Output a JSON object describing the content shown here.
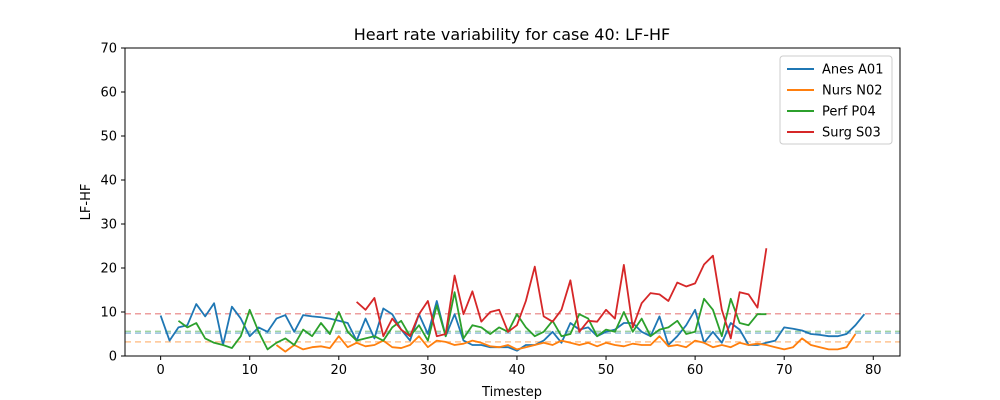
{
  "chart_data": {
    "type": "line",
    "title": "Heart rate variability for case 40: LF-HF",
    "xlabel": "Timestep",
    "ylabel": "LF-HF",
    "xlim": [
      -4,
      83
    ],
    "ylim": [
      0,
      70
    ],
    "xticks": [
      0,
      10,
      20,
      30,
      40,
      50,
      60,
      70,
      80
    ],
    "yticks": [
      0,
      10,
      20,
      30,
      40,
      50,
      60,
      70
    ],
    "grid": false,
    "legend_position": "top-right",
    "series": [
      {
        "name": "Anes A01",
        "color": "#1f77b4",
        "baseline": 5.2,
        "x": [
          0,
          1,
          2,
          3,
          4,
          5,
          6,
          7,
          8,
          9,
          10,
          11,
          12,
          13,
          14,
          15,
          16,
          17,
          18,
          19,
          20,
          21,
          22,
          23,
          24,
          25,
          26,
          27,
          28,
          29,
          30,
          31,
          32,
          33,
          34,
          35,
          36,
          37,
          38,
          39,
          40,
          41,
          42,
          43,
          44,
          45,
          46,
          47,
          48,
          49,
          50,
          51,
          52,
          53,
          54,
          55,
          56,
          57,
          58,
          59,
          60,
          61,
          62,
          63,
          64,
          65,
          66,
          67,
          68,
          69,
          70,
          71,
          72,
          73,
          74,
          75,
          76,
          77,
          78,
          79
        ],
        "values": [
          9.2,
          3.5,
          6.5,
          7.0,
          11.8,
          9.0,
          12.0,
          2.5,
          11.2,
          8.5,
          4.5,
          6.5,
          5.5,
          8.5,
          9.3,
          5.5,
          9.3,
          9.0,
          8.8,
          8.5,
          8.0,
          7.5,
          3.5,
          8.5,
          4.0,
          10.8,
          9.5,
          6.0,
          3.5,
          9.5,
          5.0,
          12.5,
          4.5,
          9.5,
          3.5,
          2.5,
          2.5,
          2.0,
          2.0,
          2.0,
          1.2,
          2.5,
          2.5,
          3.5,
          5.5,
          3.0,
          7.5,
          6.0,
          6.5,
          4.5,
          5.5,
          6.0,
          7.5,
          7.5,
          5.5,
          4.5,
          9.0,
          2.5,
          4.5,
          7.0,
          10.5,
          3.0,
          5.5,
          3.0,
          7.5,
          6.0,
          2.5,
          2.5,
          3.0,
          3.5,
          6.5,
          6.2,
          5.8,
          5.0,
          4.8,
          4.5,
          4.5,
          5.0,
          7.0,
          9.5
        ]
      },
      {
        "name": "Nurs N02",
        "color": "#ff7f0e",
        "baseline": 3.2,
        "x": [
          13,
          14,
          15,
          16,
          17,
          18,
          19,
          20,
          21,
          22,
          23,
          24,
          25,
          26,
          27,
          28,
          29,
          30,
          31,
          32,
          33,
          34,
          35,
          36,
          37,
          38,
          39,
          40,
          41,
          42,
          43,
          44,
          45,
          46,
          47,
          48,
          49,
          50,
          51,
          52,
          53,
          54,
          55,
          56,
          57,
          58,
          59,
          60,
          61,
          62,
          63,
          64,
          65,
          66,
          67,
          68,
          69,
          70,
          71,
          72,
          73,
          74,
          75,
          76,
          77,
          78
        ],
        "values": [
          2.5,
          1.0,
          2.5,
          1.5,
          2.0,
          2.2,
          1.8,
          4.5,
          2.0,
          3.0,
          2.2,
          2.5,
          3.5,
          2.0,
          1.8,
          2.5,
          4.5,
          2.0,
          3.5,
          3.2,
          2.5,
          2.8,
          3.5,
          3.0,
          2.2,
          2.0,
          2.5,
          1.5,
          2.0,
          2.5,
          3.0,
          2.5,
          3.5,
          3.0,
          2.5,
          3.0,
          2.2,
          3.0,
          2.5,
          2.2,
          2.8,
          2.5,
          2.5,
          4.5,
          2.2,
          2.5,
          2.0,
          3.5,
          3.0,
          2.0,
          2.5,
          2.0,
          3.0,
          2.5,
          2.8,
          2.5,
          2.0,
          1.5,
          2.0,
          4.0,
          2.5,
          2.0,
          1.5,
          1.5,
          2.0,
          5.0
        ]
      },
      {
        "name": "Perf P04",
        "color": "#2ca02c",
        "baseline": 5.6,
        "x": [
          2,
          3,
          4,
          5,
          6,
          7,
          8,
          9,
          10,
          11,
          12,
          13,
          14,
          15,
          16,
          17,
          18,
          19,
          20,
          21,
          22,
          23,
          24,
          25,
          26,
          27,
          28,
          29,
          30,
          31,
          32,
          33,
          34,
          35,
          36,
          37,
          38,
          39,
          40,
          41,
          42,
          43,
          44,
          45,
          46,
          47,
          48,
          49,
          50,
          51,
          52,
          53,
          54,
          55,
          56,
          57,
          58,
          59,
          60,
          61,
          62,
          63,
          64,
          65,
          66,
          67,
          68
        ],
        "values": [
          8.0,
          6.5,
          7.5,
          4.0,
          3.0,
          2.5,
          1.8,
          4.5,
          10.5,
          5.5,
          1.5,
          3.0,
          4.0,
          2.5,
          6.0,
          4.5,
          7.5,
          5.0,
          10.0,
          5.5,
          3.5,
          4.0,
          4.5,
          3.5,
          6.5,
          8.0,
          4.5,
          7.0,
          3.5,
          11.5,
          4.5,
          14.5,
          4.0,
          7.0,
          6.5,
          5.0,
          6.5,
          5.5,
          9.5,
          6.5,
          4.5,
          5.5,
          8.0,
          4.5,
          5.0,
          9.5,
          8.5,
          4.5,
          6.0,
          5.5,
          10.0,
          5.5,
          8.5,
          4.5,
          6.0,
          6.5,
          8.0,
          5.0,
          5.5,
          13.0,
          10.5,
          4.5,
          13.0,
          7.5,
          7.0,
          9.5,
          9.5
        ]
      },
      {
        "name": "Surg S03",
        "color": "#d62728",
        "baseline": 9.6,
        "x": [
          22,
          23,
          24,
          25,
          26,
          27,
          28,
          29,
          30,
          31,
          32,
          33,
          34,
          35,
          36,
          37,
          38,
          39,
          40,
          41,
          42,
          43,
          44,
          45,
          46,
          47,
          48,
          49,
          50,
          51,
          52,
          53,
          54,
          55,
          56,
          57,
          58,
          59,
          60,
          61,
          62,
          63,
          64,
          65,
          66,
          67,
          68
        ],
        "values": [
          12.3,
          10.5,
          13.2,
          4.5,
          8.5,
          6.0,
          4.5,
          9.5,
          12.5,
          4.5,
          5.0,
          18.3,
          9.5,
          14.7,
          7.8,
          10.0,
          10.5,
          5.5,
          7.0,
          12.5,
          20.3,
          9.0,
          7.8,
          10.5,
          17.2,
          5.5,
          8.0,
          7.8,
          10.5,
          8.5,
          20.7,
          6.5,
          12.0,
          14.3,
          14.0,
          12.5,
          16.7,
          15.8,
          16.5,
          20.8,
          22.8,
          10.5,
          4.0,
          14.5,
          14.0,
          11.0,
          24.5
        ]
      }
    ]
  }
}
